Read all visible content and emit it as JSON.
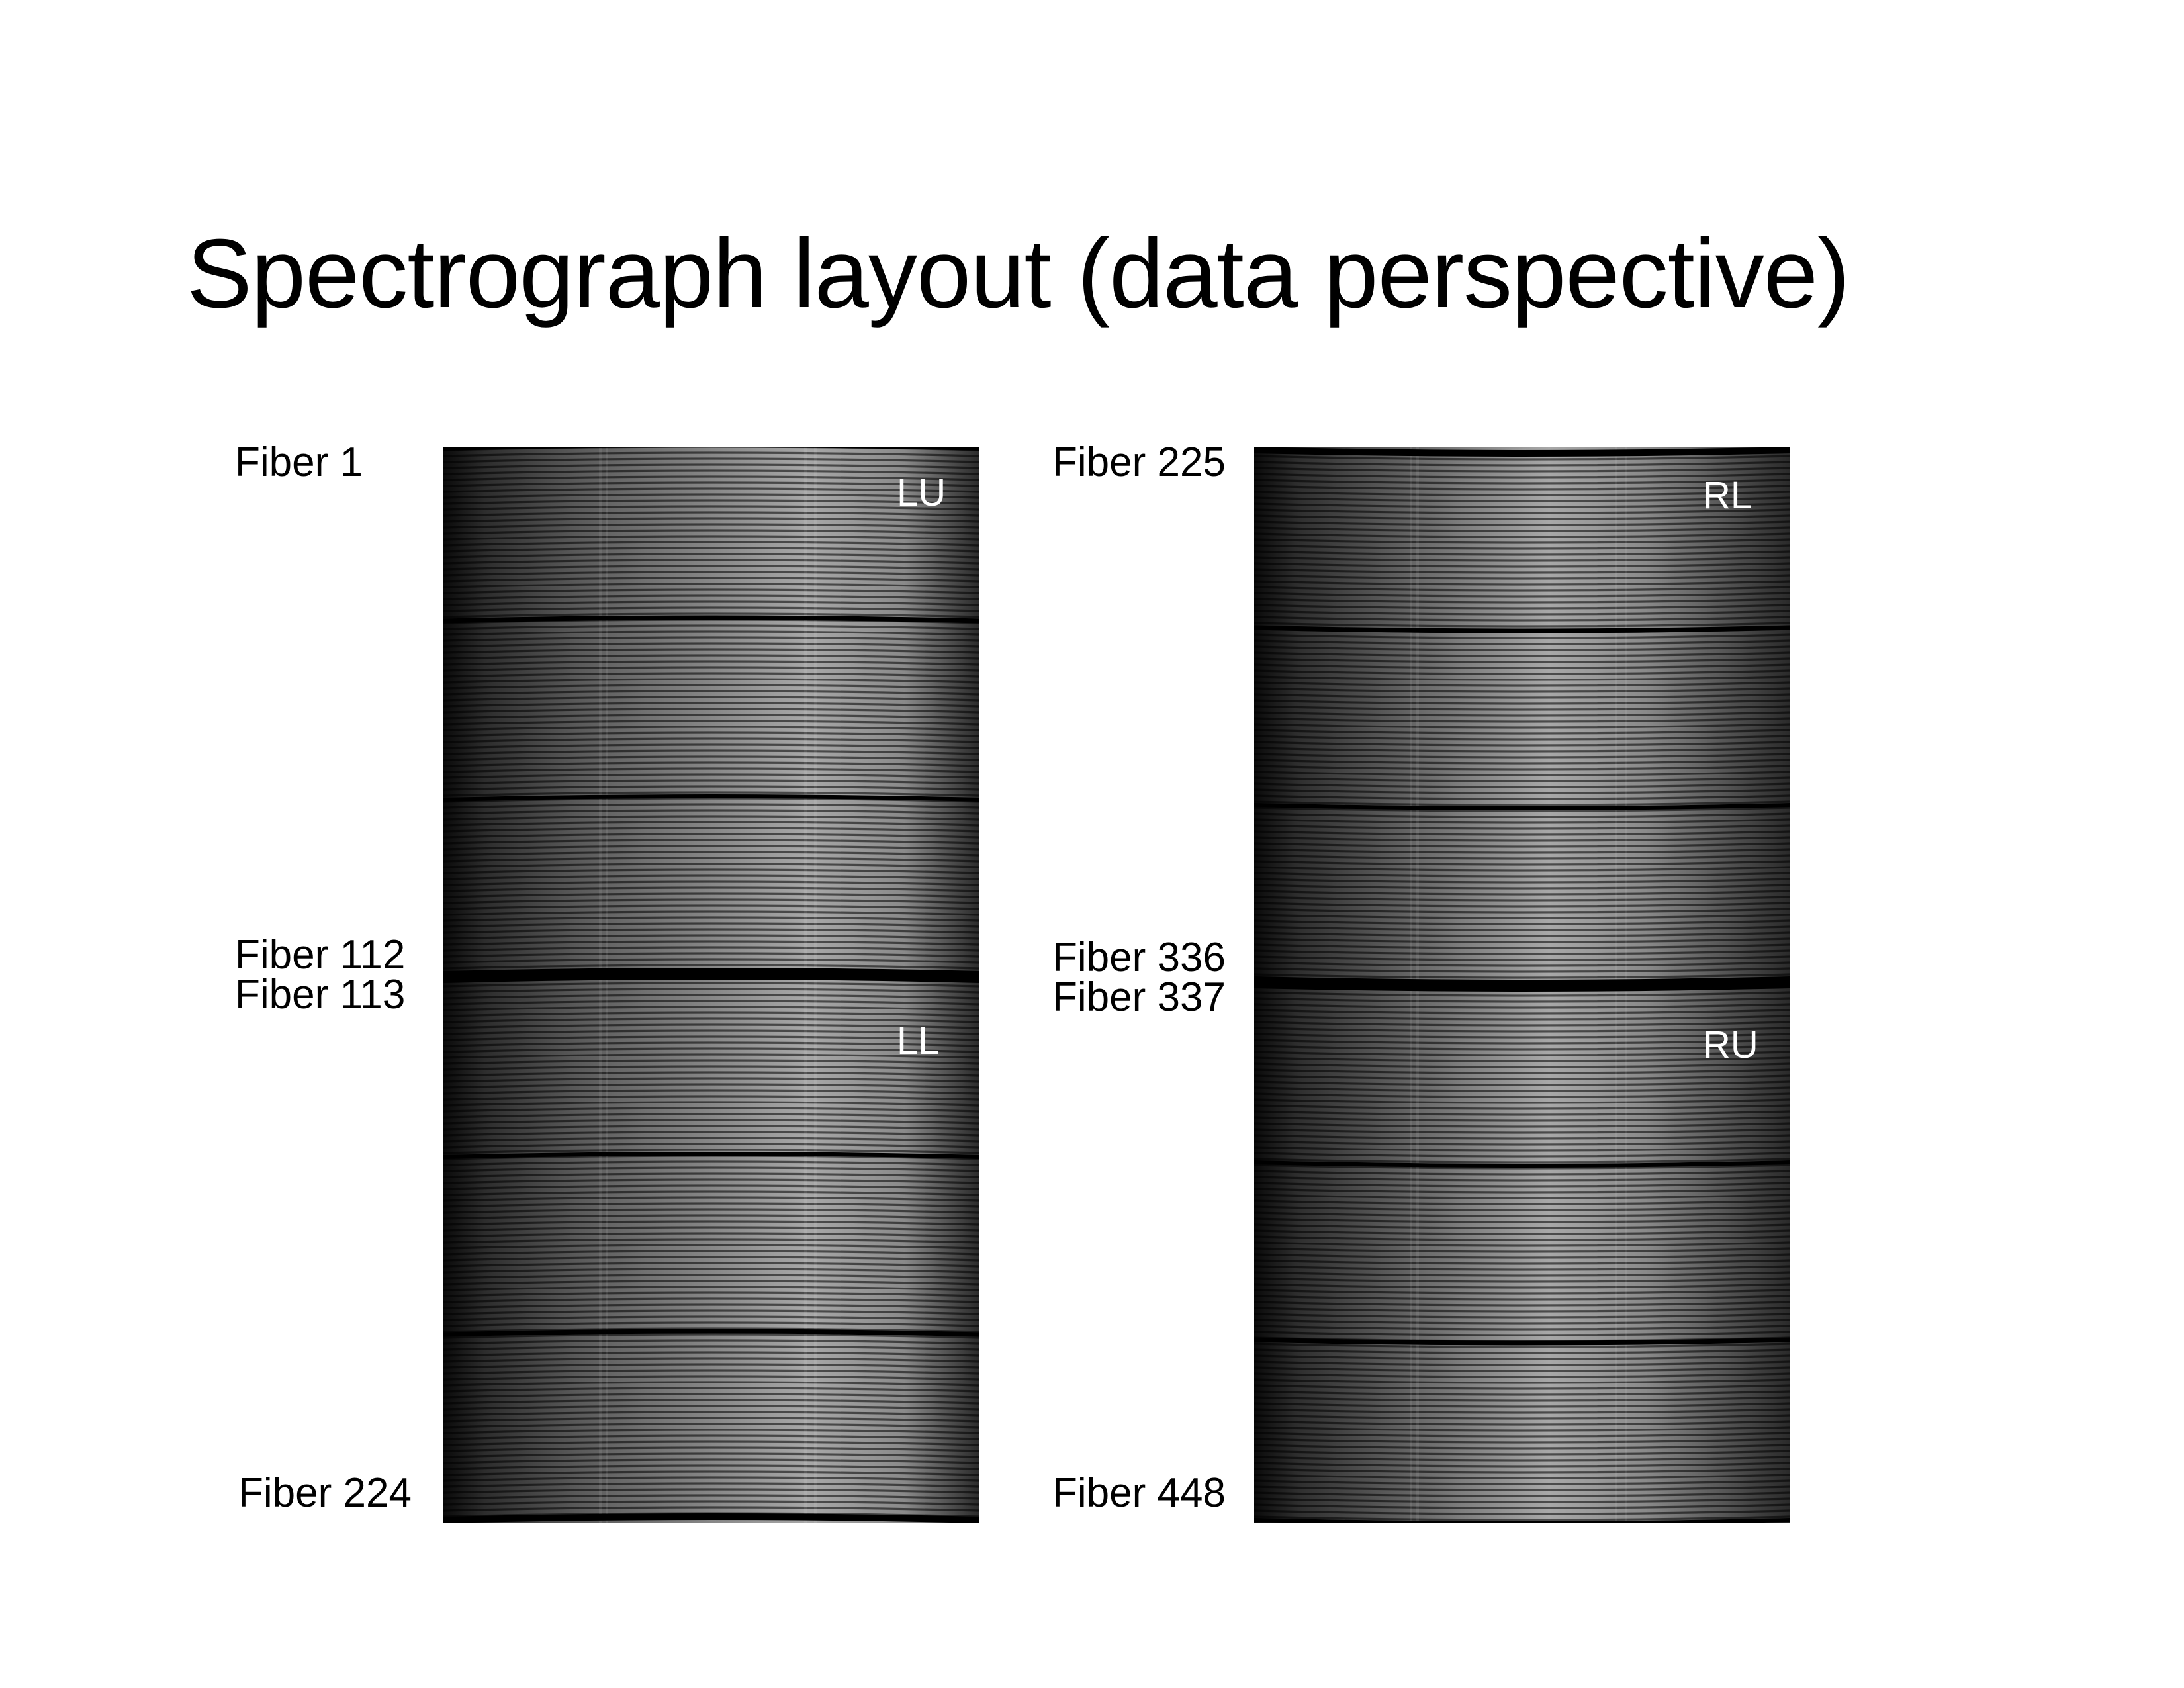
{
  "slide": {
    "title": "Spectrograph layout (data perspective)"
  },
  "left_panel": {
    "fiber_labels": [
      "Fiber 1",
      "Fiber 112",
      "Fiber 113",
      "Fiber 224"
    ],
    "quadrant_labels": [
      "LU",
      "LL"
    ],
    "gap_line_count": 5
  },
  "right_panel": {
    "fiber_labels": [
      "Fiber 225",
      "Fiber 336",
      "Fiber 337",
      "Fiber 448"
    ],
    "quadrant_labels": [
      "RL",
      "RU"
    ],
    "gap_line_count": 5
  },
  "colors": {
    "background": "#ffffff",
    "text": "#000000",
    "ccd_dark": "#1a1a1a",
    "quadrant_label": "#ffffff"
  }
}
